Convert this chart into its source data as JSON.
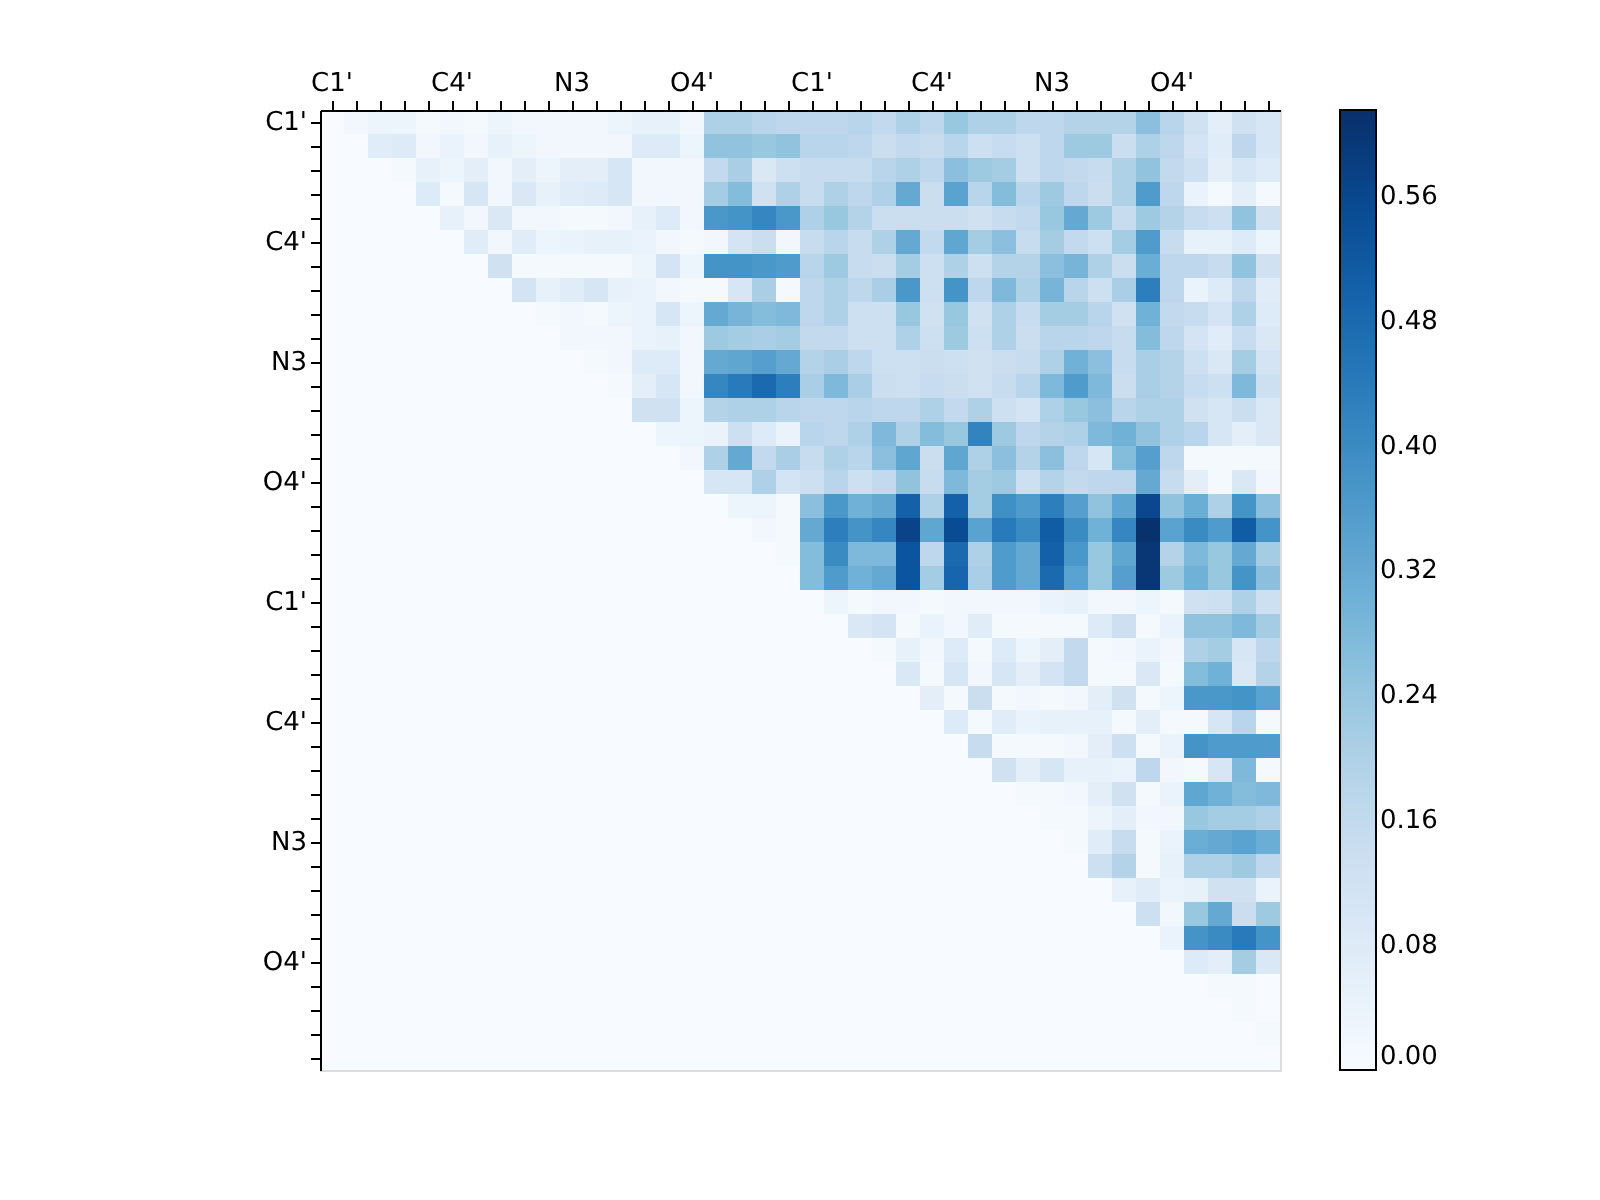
{
  "chart_data": {
    "type": "heatmap",
    "categories": [
      "C1'",
      null,
      null,
      null,
      null,
      "C4'",
      null,
      null,
      null,
      null,
      "N3",
      null,
      null,
      null,
      null,
      "O4'",
      null,
      null,
      null,
      null,
      "C1'",
      null,
      null,
      null,
      null,
      "C4'",
      null,
      null,
      null,
      null,
      "N3",
      null,
      null,
      null,
      null,
      "O4'",
      null,
      null,
      null,
      null
    ],
    "y_categories": [
      "C1'",
      null,
      null,
      null,
      null,
      "C4'",
      null,
      null,
      null,
      null,
      "N3",
      null,
      null,
      null,
      null,
      "O4'",
      null,
      null,
      null,
      null,
      "C1'",
      null,
      null,
      null,
      null,
      "C4'",
      null,
      null,
      null,
      null,
      "N3",
      null,
      null,
      null,
      null,
      "O4'",
      null,
      null,
      null,
      null
    ],
    "clim": [
      0,
      0.615
    ],
    "cticks": [
      {
        "value": 0,
        "label": "0.00"
      },
      0.08,
      0.16,
      0.24,
      0.32,
      {
        "value": 0.4,
        "label": "0.40"
      },
      0.48,
      0.56
    ],
    "cells": [
      [
        0,
        0.02,
        0.03,
        0.03,
        0.01,
        0.02,
        0.01,
        0.03,
        0.02,
        0.02,
        0.02,
        0.02,
        0.03,
        0.05,
        0.05,
        0.02,
        0.2,
        0.2,
        0.18,
        0.17,
        0.17,
        0.17,
        0.18,
        0.16,
        0.2,
        0.17,
        0.24,
        0.2,
        0.2,
        0.17,
        0.17,
        0.19,
        0.19,
        0.19,
        0.26,
        0.18,
        0.12,
        0.06,
        0.12,
        0.1
      ],
      [
        0,
        0,
        0.07,
        0.08,
        0.02,
        0.04,
        0.02,
        0.05,
        0.03,
        0.02,
        0.02,
        0.02,
        0.02,
        0.08,
        0.08,
        0.03,
        0.25,
        0.25,
        0.24,
        0.25,
        0.18,
        0.18,
        0.17,
        0.14,
        0.16,
        0.15,
        0.18,
        0.13,
        0.15,
        0.13,
        0.17,
        0.23,
        0.23,
        0.14,
        0.2,
        0.17,
        0.11,
        0.07,
        0.17,
        0.1
      ],
      [
        0,
        0,
        0,
        0.01,
        0.05,
        0.03,
        0.06,
        0.02,
        0.06,
        0.03,
        0.06,
        0.06,
        0.1,
        0.02,
        0.02,
        0.02,
        0.16,
        0.21,
        0.09,
        0.13,
        0.15,
        0.15,
        0.15,
        0.18,
        0.2,
        0.17,
        0.26,
        0.23,
        0.22,
        0.13,
        0.17,
        0.16,
        0.15,
        0.2,
        0.25,
        0.16,
        0.13,
        0.06,
        0.1,
        0.08
      ],
      [
        0,
        0,
        0,
        0,
        0.08,
        0.01,
        0.1,
        0.02,
        0.09,
        0.05,
        0.07,
        0.08,
        0.1,
        0.02,
        0.02,
        0.02,
        0.22,
        0.27,
        0.12,
        0.2,
        0.15,
        0.2,
        0.17,
        0.2,
        0.32,
        0.14,
        0.34,
        0.18,
        0.27,
        0.18,
        0.23,
        0.17,
        0.14,
        0.2,
        0.36,
        0.17,
        0.04,
        0.01,
        0.06,
        0.01
      ],
      [
        0,
        0,
        0,
        0,
        0,
        0.05,
        0.02,
        0.09,
        0.02,
        0.02,
        0.01,
        0.01,
        0.02,
        0.05,
        0.08,
        0.02,
        0.37,
        0.38,
        0.41,
        0.37,
        0.2,
        0.24,
        0.19,
        0.14,
        0.14,
        0.14,
        0.14,
        0.12,
        0.15,
        0.16,
        0.24,
        0.32,
        0.23,
        0.15,
        0.23,
        0.19,
        0.15,
        0.13,
        0.25,
        0.12
      ],
      [
        0,
        0,
        0,
        0,
        0,
        0,
        0.07,
        0.02,
        0.07,
        0.03,
        0.04,
        0.05,
        0.05,
        0.04,
        0.02,
        0.01,
        0.02,
        0.11,
        0.14,
        0.02,
        0.15,
        0.18,
        0.15,
        0.2,
        0.32,
        0.16,
        0.33,
        0.22,
        0.26,
        0.15,
        0.22,
        0.16,
        0.13,
        0.22,
        0.36,
        0.15,
        0.05,
        0.05,
        0.08,
        0.03
      ],
      [
        0,
        0,
        0,
        0,
        0,
        0,
        0,
        0.12,
        0.01,
        0.01,
        0.01,
        0.01,
        0.01,
        0.03,
        0.11,
        0.03,
        0.38,
        0.38,
        0.37,
        0.36,
        0.18,
        0.23,
        0.15,
        0.14,
        0.22,
        0.13,
        0.2,
        0.13,
        0.19,
        0.19,
        0.26,
        0.29,
        0.2,
        0.14,
        0.31,
        0.17,
        0.17,
        0.15,
        0.25,
        0.12
      ],
      [
        0,
        0,
        0,
        0,
        0,
        0,
        0,
        0,
        0.11,
        0.05,
        0.07,
        0.1,
        0.05,
        0.04,
        0.02,
        0.01,
        0.01,
        0.1,
        0.21,
        0.01,
        0.17,
        0.2,
        0.17,
        0.21,
        0.37,
        0.13,
        0.38,
        0.17,
        0.28,
        0.2,
        0.29,
        0.18,
        0.13,
        0.21,
        0.43,
        0.17,
        0.04,
        0.08,
        0.17,
        0.07
      ],
      [
        0,
        0,
        0,
        0,
        0,
        0,
        0,
        0,
        0,
        0.01,
        0.02,
        0.01,
        0.03,
        0.04,
        0.1,
        0.03,
        0.32,
        0.29,
        0.27,
        0.28,
        0.17,
        0.2,
        0.13,
        0.13,
        0.24,
        0.12,
        0.24,
        0.12,
        0.2,
        0.15,
        0.22,
        0.22,
        0.18,
        0.12,
        0.3,
        0.16,
        0.15,
        0.11,
        0.2,
        0.08
      ],
      [
        0,
        0,
        0,
        0,
        0,
        0,
        0,
        0,
        0,
        0,
        0.02,
        0.02,
        0.02,
        0.04,
        0.05,
        0.02,
        0.23,
        0.22,
        0.21,
        0.22,
        0.16,
        0.16,
        0.13,
        0.13,
        0.2,
        0.13,
        0.23,
        0.13,
        0.2,
        0.14,
        0.18,
        0.18,
        0.17,
        0.15,
        0.27,
        0.17,
        0.11,
        0.07,
        0.15,
        0.09
      ],
      [
        0,
        0,
        0,
        0,
        0,
        0,
        0,
        0,
        0,
        0,
        0,
        0.01,
        0.02,
        0.08,
        0.08,
        0.02,
        0.32,
        0.33,
        0.35,
        0.32,
        0.19,
        0.21,
        0.17,
        0.13,
        0.13,
        0.14,
        0.13,
        0.12,
        0.14,
        0.15,
        0.2,
        0.3,
        0.26,
        0.15,
        0.21,
        0.19,
        0.13,
        0.09,
        0.22,
        0.11
      ],
      [
        0,
        0,
        0,
        0,
        0,
        0,
        0,
        0,
        0,
        0,
        0,
        0,
        0.01,
        0.06,
        0.1,
        0.02,
        0.41,
        0.44,
        0.48,
        0.43,
        0.21,
        0.28,
        0.21,
        0.14,
        0.13,
        0.15,
        0.14,
        0.12,
        0.15,
        0.18,
        0.28,
        0.36,
        0.28,
        0.14,
        0.21,
        0.19,
        0.15,
        0.13,
        0.28,
        0.13
      ],
      [
        0,
        0,
        0,
        0,
        0,
        0,
        0,
        0,
        0,
        0,
        0,
        0,
        0,
        0.12,
        0.12,
        0.03,
        0.19,
        0.2,
        0.2,
        0.18,
        0.17,
        0.17,
        0.18,
        0.17,
        0.17,
        0.2,
        0.16,
        0.2,
        0.13,
        0.11,
        0.2,
        0.24,
        0.26,
        0.18,
        0.2,
        0.2,
        0.12,
        0.1,
        0.14,
        0.09
      ],
      [
        0,
        0,
        0,
        0,
        0,
        0,
        0,
        0,
        0,
        0,
        0,
        0,
        0,
        0,
        0.03,
        0.03,
        0.04,
        0.13,
        0.08,
        0.04,
        0.18,
        0.17,
        0.2,
        0.28,
        0.2,
        0.27,
        0.24,
        0.42,
        0.23,
        0.17,
        0.19,
        0.2,
        0.28,
        0.3,
        0.25,
        0.2,
        0.18,
        0.1,
        0.06,
        0.09
      ],
      [
        0,
        0,
        0,
        0,
        0,
        0,
        0,
        0,
        0,
        0,
        0,
        0,
        0,
        0,
        0,
        0.02,
        0.2,
        0.32,
        0.16,
        0.21,
        0.15,
        0.2,
        0.18,
        0.26,
        0.33,
        0.14,
        0.33,
        0.2,
        0.26,
        0.19,
        0.26,
        0.17,
        0.1,
        0.27,
        0.35,
        0.17,
        0.01,
        0.01,
        0.01,
        0.01
      ],
      [
        0,
        0,
        0,
        0,
        0,
        0,
        0,
        0,
        0,
        0,
        0,
        0,
        0,
        0,
        0,
        0,
        0.1,
        0.1,
        0.2,
        0.11,
        0.13,
        0.18,
        0.13,
        0.16,
        0.25,
        0.15,
        0.28,
        0.22,
        0.23,
        0.13,
        0.19,
        0.16,
        0.17,
        0.17,
        0.32,
        0.15,
        0.06,
        0.01,
        0.09,
        0.02
      ],
      [
        0,
        0,
        0,
        0,
        0,
        0,
        0,
        0,
        0,
        0,
        0,
        0,
        0,
        0,
        0,
        0,
        0,
        0.03,
        0.03,
        0.01,
        0.26,
        0.37,
        0.3,
        0.32,
        0.5,
        0.2,
        0.5,
        0.22,
        0.39,
        0.36,
        0.43,
        0.35,
        0.25,
        0.33,
        0.56,
        0.25,
        0.31,
        0.2,
        0.38,
        0.26
      ],
      [
        0,
        0,
        0,
        0,
        0,
        0,
        0,
        0,
        0,
        0,
        0,
        0,
        0,
        0,
        0,
        0,
        0,
        0,
        0.02,
        0.01,
        0.32,
        0.43,
        0.38,
        0.41,
        0.57,
        0.33,
        0.55,
        0.34,
        0.44,
        0.4,
        0.51,
        0.4,
        0.3,
        0.41,
        0.61,
        0.34,
        0.4,
        0.36,
        0.51,
        0.38
      ],
      [
        0,
        0,
        0,
        0,
        0,
        0,
        0,
        0,
        0,
        0,
        0,
        0,
        0,
        0,
        0,
        0,
        0,
        0,
        0,
        0.01,
        0.27,
        0.4,
        0.28,
        0.28,
        0.53,
        0.17,
        0.48,
        0.2,
        0.36,
        0.32,
        0.5,
        0.37,
        0.24,
        0.33,
        0.6,
        0.19,
        0.28,
        0.24,
        0.32,
        0.22
      ],
      [
        0,
        0,
        0,
        0,
        0,
        0,
        0,
        0,
        0,
        0,
        0,
        0,
        0,
        0,
        0,
        0,
        0,
        0,
        0,
        0,
        0.27,
        0.36,
        0.3,
        0.32,
        0.53,
        0.22,
        0.49,
        0.21,
        0.36,
        0.32,
        0.48,
        0.34,
        0.24,
        0.35,
        0.6,
        0.23,
        0.3,
        0.24,
        0.38,
        0.26
      ],
      [
        0,
        0,
        0,
        0,
        0,
        0,
        0,
        0,
        0,
        0,
        0,
        0,
        0,
        0,
        0,
        0,
        0,
        0,
        0,
        0,
        0,
        0.03,
        0.01,
        0.02,
        0.02,
        0.01,
        0.02,
        0.02,
        0.02,
        0.02,
        0.04,
        0.05,
        0.02,
        0.02,
        0.03,
        0.01,
        0.12,
        0.13,
        0.2,
        0.13
      ],
      [
        0,
        0,
        0,
        0,
        0,
        0,
        0,
        0,
        0,
        0,
        0,
        0,
        0,
        0,
        0,
        0,
        0,
        0,
        0,
        0,
        0,
        0,
        0.09,
        0.11,
        0.01,
        0.04,
        0.02,
        0.07,
        0.01,
        0.01,
        0.01,
        0.01,
        0.08,
        0.13,
        0.01,
        0.04,
        0.25,
        0.25,
        0.28,
        0.22
      ],
      [
        0,
        0,
        0,
        0,
        0,
        0,
        0,
        0,
        0,
        0,
        0,
        0,
        0,
        0,
        0,
        0,
        0,
        0,
        0,
        0,
        0,
        0,
        0,
        0.01,
        0.05,
        0.02,
        0.08,
        0.01,
        0.08,
        0.03,
        0.06,
        0.16,
        0.01,
        0.02,
        0.04,
        0.02,
        0.2,
        0.22,
        0.1,
        0.17
      ],
      [
        0,
        0,
        0,
        0,
        0,
        0,
        0,
        0,
        0,
        0,
        0,
        0,
        0,
        0,
        0,
        0,
        0,
        0,
        0,
        0,
        0,
        0,
        0,
        0,
        0.09,
        0.01,
        0.1,
        0.02,
        0.1,
        0.06,
        0.11,
        0.16,
        0.01,
        0.01,
        0.09,
        0.01,
        0.27,
        0.3,
        0.09,
        0.19
      ],
      [
        0,
        0,
        0,
        0,
        0,
        0,
        0,
        0,
        0,
        0,
        0,
        0,
        0,
        0,
        0,
        0,
        0,
        0,
        0,
        0,
        0,
        0,
        0,
        0,
        0,
        0.06,
        0.01,
        0.14,
        0.01,
        0.02,
        0.01,
        0.02,
        0.06,
        0.12,
        0.01,
        0.03,
        0.37,
        0.37,
        0.38,
        0.34
      ],
      [
        0,
        0,
        0,
        0,
        0,
        0,
        0,
        0,
        0,
        0,
        0,
        0,
        0,
        0,
        0,
        0,
        0,
        0,
        0,
        0,
        0,
        0,
        0,
        0,
        0,
        0,
        0.08,
        0.01,
        0.07,
        0.04,
        0.05,
        0.05,
        0.05,
        0.01,
        0.06,
        0.01,
        0.01,
        0.1,
        0.18,
        0.01
      ],
      [
        0,
        0,
        0,
        0,
        0,
        0,
        0,
        0,
        0,
        0,
        0,
        0,
        0,
        0,
        0,
        0,
        0,
        0,
        0,
        0,
        0,
        0,
        0,
        0,
        0,
        0,
        0,
        0.15,
        0.01,
        0.01,
        0.01,
        0.02,
        0.06,
        0.13,
        0.01,
        0.04,
        0.38,
        0.36,
        0.36,
        0.36
      ],
      [
        0,
        0,
        0,
        0,
        0,
        0,
        0,
        0,
        0,
        0,
        0,
        0,
        0,
        0,
        0,
        0,
        0,
        0,
        0,
        0,
        0,
        0,
        0,
        0,
        0,
        0,
        0,
        0,
        0.12,
        0.06,
        0.1,
        0.05,
        0.05,
        0.04,
        0.17,
        0.02,
        0.01,
        0.1,
        0.28,
        0.01
      ],
      [
        0,
        0,
        0,
        0,
        0,
        0,
        0,
        0,
        0,
        0,
        0,
        0,
        0,
        0,
        0,
        0,
        0,
        0,
        0,
        0,
        0,
        0,
        0,
        0,
        0,
        0,
        0,
        0,
        0,
        0.01,
        0.01,
        0.02,
        0.06,
        0.12,
        0.01,
        0.04,
        0.33,
        0.3,
        0.27,
        0.28
      ],
      [
        0,
        0,
        0,
        0,
        0,
        0,
        0,
        0,
        0,
        0,
        0,
        0,
        0,
        0,
        0,
        0,
        0,
        0,
        0,
        0,
        0,
        0,
        0,
        0,
        0,
        0,
        0,
        0,
        0,
        0,
        0.01,
        0.01,
        0.03,
        0.06,
        0.02,
        0.02,
        0.24,
        0.22,
        0.22,
        0.2
      ],
      [
        0,
        0,
        0,
        0,
        0,
        0,
        0,
        0,
        0,
        0,
        0,
        0,
        0,
        0,
        0,
        0,
        0,
        0,
        0,
        0,
        0,
        0,
        0,
        0,
        0,
        0,
        0,
        0,
        0,
        0,
        0,
        0.01,
        0.07,
        0.15,
        0.01,
        0.04,
        0.31,
        0.32,
        0.34,
        0.31
      ],
      [
        0,
        0,
        0,
        0,
        0,
        0,
        0,
        0,
        0,
        0,
        0,
        0,
        0,
        0,
        0,
        0,
        0,
        0,
        0,
        0,
        0,
        0,
        0,
        0,
        0,
        0,
        0,
        0,
        0,
        0,
        0,
        0,
        0.13,
        0.19,
        0.01,
        0.05,
        0.2,
        0.2,
        0.23,
        0.17
      ],
      [
        0,
        0,
        0,
        0,
        0,
        0,
        0,
        0,
        0,
        0,
        0,
        0,
        0,
        0,
        0,
        0,
        0,
        0,
        0,
        0,
        0,
        0,
        0,
        0,
        0,
        0,
        0,
        0,
        0,
        0,
        0,
        0,
        0,
        0.05,
        0.07,
        0.04,
        0.05,
        0.12,
        0.12,
        0.04
      ],
      [
        0,
        0,
        0,
        0,
        0,
        0,
        0,
        0,
        0,
        0,
        0,
        0,
        0,
        0,
        0,
        0,
        0,
        0,
        0,
        0,
        0,
        0,
        0,
        0,
        0,
        0,
        0,
        0,
        0,
        0,
        0,
        0,
        0,
        0,
        0.13,
        0.02,
        0.24,
        0.32,
        0.14,
        0.23
      ],
      [
        0,
        0,
        0,
        0,
        0,
        0,
        0,
        0,
        0,
        0,
        0,
        0,
        0,
        0,
        0,
        0,
        0,
        0,
        0,
        0,
        0,
        0,
        0,
        0,
        0,
        0,
        0,
        0,
        0,
        0,
        0,
        0,
        0,
        0,
        0,
        0.04,
        0.38,
        0.4,
        0.44,
        0.38
      ],
      [
        0,
        0,
        0,
        0,
        0,
        0,
        0,
        0,
        0,
        0,
        0,
        0,
        0,
        0,
        0,
        0,
        0,
        0,
        0,
        0,
        0,
        0,
        0,
        0,
        0,
        0,
        0,
        0,
        0,
        0,
        0,
        0,
        0,
        0,
        0,
        0,
        0.08,
        0.06,
        0.22,
        0.09
      ],
      [
        0,
        0,
        0,
        0,
        0,
        0,
        0,
        0,
        0,
        0,
        0,
        0,
        0,
        0,
        0,
        0,
        0,
        0,
        0,
        0,
        0,
        0,
        0,
        0,
        0,
        0,
        0,
        0,
        0,
        0,
        0,
        0,
        0,
        0,
        0,
        0,
        0,
        0.01,
        0.01,
        0
      ],
      [
        0,
        0,
        0,
        0,
        0,
        0,
        0,
        0,
        0,
        0,
        0,
        0,
        0,
        0,
        0,
        0,
        0,
        0,
        0,
        0,
        0,
        0,
        0,
        0,
        0,
        0,
        0,
        0,
        0,
        0,
        0,
        0,
        0,
        0,
        0,
        0,
        0,
        0,
        0.01,
        0
      ],
      [
        0,
        0,
        0,
        0,
        0,
        0,
        0,
        0,
        0,
        0,
        0,
        0,
        0,
        0,
        0,
        0,
        0,
        0,
        0,
        0,
        0,
        0,
        0,
        0,
        0,
        0,
        0,
        0,
        0,
        0,
        0,
        0,
        0,
        0,
        0,
        0,
        0,
        0,
        0,
        0.01
      ],
      [
        0,
        0,
        0,
        0,
        0,
        0,
        0,
        0,
        0,
        0,
        0,
        0,
        0,
        0,
        0,
        0,
        0,
        0,
        0,
        0,
        0,
        0,
        0,
        0,
        0,
        0,
        0,
        0,
        0,
        0,
        0,
        0,
        0,
        0,
        0,
        0,
        0,
        0,
        0,
        0
      ]
    ]
  }
}
